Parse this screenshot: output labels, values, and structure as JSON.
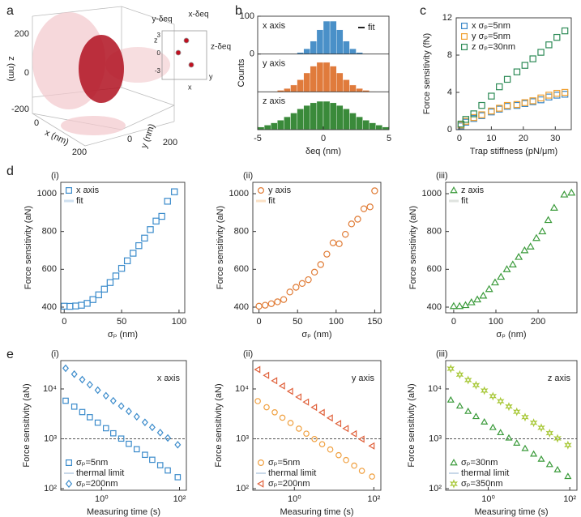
{
  "chart_data": [
    {
      "type": "scatter3d",
      "label": "a",
      "xlabel": "x (nm)",
      "ylabel": "y (nm)",
      "zlabel": "z (nm)",
      "zticks": [
        200,
        0,
        -200
      ],
      "xticks": [
        0,
        200
      ],
      "yticks": [
        0,
        200
      ],
      "inset_labels": [
        "y-δeq",
        "x-δeq",
        "z-δeq"
      ],
      "inset_axes": [
        "z",
        "y",
        "x"
      ],
      "inset_ticks": [
        3,
        0,
        -3
      ]
    },
    {
      "type": "histogram",
      "label": "b",
      "xlabel": "δeq (nm)",
      "ylabel": "Counts",
      "fit_label": "fit",
      "bins": [
        -5,
        -4.5,
        -4,
        -3.5,
        -3,
        -2.5,
        -2,
        -1.5,
        -1,
        -0.5,
        0,
        0.5,
        1,
        1.5,
        2,
        2.5,
        3,
        3.5,
        4,
        4.5,
        5
      ],
      "xlim": [
        -5,
        5
      ],
      "xticks": [
        -5,
        0,
        5
      ],
      "ylim": [
        0,
        100
      ],
      "yticks": [
        0,
        100
      ],
      "series": [
        {
          "name": "x axis",
          "color": "#4a90c8",
          "values": [
            0,
            0,
            0,
            0,
            0,
            1,
            4,
            14,
            34,
            64,
            87,
            87,
            64,
            34,
            14,
            4,
            1,
            0,
            0,
            0
          ]
        },
        {
          "name": "y axis",
          "color": "#e07b3c",
          "values": [
            0,
            0,
            1,
            4,
            9,
            18,
            32,
            50,
            68,
            78,
            78,
            68,
            50,
            32,
            18,
            9,
            4,
            1,
            0,
            0
          ]
        },
        {
          "name": "z axis",
          "color": "#3a8a3a",
          "values": [
            7,
            12,
            18,
            25,
            34,
            44,
            55,
            64,
            71,
            75,
            75,
            71,
            64,
            55,
            44,
            34,
            25,
            18,
            12,
            7
          ]
        }
      ]
    },
    {
      "type": "scatter",
      "label": "c",
      "xlabel": "Trap stiffness (pN/μm)",
      "ylabel": "Force sensitivity (fN)",
      "xlim": [
        -1,
        35
      ],
      "xticks": [
        0,
        10,
        20,
        30
      ],
      "ylim": [
        0,
        12
      ],
      "yticks": [
        0,
        4,
        8,
        12
      ],
      "legend": "upper left",
      "x": [
        0.5,
        2,
        4.5,
        7,
        10,
        12.5,
        15,
        18,
        20.5,
        23,
        25.5,
        28,
        30.5,
        33
      ],
      "series": [
        {
          "name": "x σₚ=5nm",
          "color": "#3a87c8",
          "marker": "square",
          "values": [
            0.4,
            0.8,
            1.2,
            1.5,
            1.9,
            2.2,
            2.5,
            2.6,
            2.8,
            3.0,
            3.2,
            3.5,
            3.7,
            3.8
          ]
        },
        {
          "name": "y σₚ=5nm",
          "color": "#f0a030",
          "marker": "square",
          "values": [
            0.5,
            0.9,
            1.3,
            1.6,
            2.0,
            2.3,
            2.6,
            2.7,
            2.9,
            3.1,
            3.4,
            3.7,
            3.9,
            4.0
          ]
        },
        {
          "name": "z σₚ=30nm",
          "color": "#2e8b57",
          "marker": "square",
          "values": [
            0.6,
            1.1,
            1.7,
            2.6,
            3.6,
            4.6,
            5.4,
            6.2,
            6.9,
            7.6,
            8.3,
            9.1,
            9.9,
            10.6
          ]
        }
      ]
    },
    {
      "type": "scatter",
      "label": "d",
      "sublabel": "(i)",
      "xlabel": "σₚ (nm)",
      "ylabel": "Force sensitivity (aN)",
      "fit_label": "fit",
      "fit_color": "#cfe0f0",
      "xlim": [
        -3,
        105
      ],
      "xticks": [
        0,
        50,
        100
      ],
      "ylim": [
        370,
        1060
      ],
      "yticks": [
        400,
        600,
        800,
        1000
      ],
      "legend": "upper left",
      "x": [
        0,
        5,
        10,
        15,
        20,
        25,
        30,
        35,
        40,
        45,
        50,
        55,
        60,
        65,
        70,
        75,
        80,
        85,
        90,
        96
      ],
      "series": [
        {
          "name": "x axis",
          "color": "#3a8bcb",
          "marker": "square",
          "values": [
            405,
            404,
            406,
            410,
            420,
            440,
            465,
            495,
            530,
            565,
            605,
            645,
            685,
            725,
            765,
            810,
            855,
            880,
            960,
            1010
          ]
        }
      ]
    },
    {
      "type": "scatter",
      "sublabel": "(ii)",
      "xlabel": "σₚ (nm)",
      "ylabel": "Force sensitivity (aN)",
      "fit_label": "fit",
      "fit_color": "#fbe0c4",
      "xlim": [
        -8,
        158
      ],
      "xticks": [
        0,
        50,
        100,
        150
      ],
      "ylim": [
        370,
        1060
      ],
      "yticks": [
        400,
        600,
        800,
        1000
      ],
      "legend": "upper left",
      "x": [
        0,
        8,
        16,
        24,
        32,
        40,
        48,
        56,
        64,
        72,
        80,
        88,
        96,
        104,
        112,
        120,
        128,
        136,
        144,
        150
      ],
      "series": [
        {
          "name": "y axis",
          "color": "#e07b35",
          "marker": "circle",
          "values": [
            405,
            410,
            418,
            428,
            440,
            480,
            505,
            525,
            545,
            585,
            625,
            680,
            740,
            735,
            785,
            840,
            865,
            920,
            930,
            1015
          ]
        }
      ]
    },
    {
      "type": "scatter",
      "sublabel": "(iii)",
      "xlabel": "σₚ (nm)",
      "ylabel": "Force sensitivity (aN)",
      "fit_label": "fit",
      "fit_color": "#dfe3df",
      "xlim": [
        -19,
        292
      ],
      "xticks": [
        0,
        100,
        200
      ],
      "ylim": [
        370,
        1060
      ],
      "yticks": [
        400,
        600,
        800,
        1000
      ],
      "legend": "upper left",
      "x": [
        0,
        14,
        28,
        42,
        56,
        70,
        84,
        98,
        112,
        126,
        140,
        154,
        168,
        182,
        196,
        210,
        224,
        238,
        262,
        279
      ],
      "series": [
        {
          "name": "z axis",
          "color": "#3a9a3a",
          "marker": "triangle-up",
          "values": [
            405,
            405,
            410,
            425,
            440,
            460,
            495,
            530,
            560,
            600,
            625,
            665,
            700,
            720,
            765,
            800,
            860,
            925,
            995,
            1005
          ]
        }
      ]
    },
    {
      "type": "scatter",
      "label": "e",
      "sublabel": "(i)",
      "title": "x axis",
      "xlabel": "Measuring time (s)",
      "ylabel": "Force sensitivity (aN)",
      "log_x": true,
      "log_y": true,
      "xlim": [
        0.09,
        150
      ],
      "ylim": [
        93,
        37000
      ],
      "legend": "lower left",
      "xticks": [
        {
          "value": 1,
          "label": "10⁰"
        },
        {
          "value": 100,
          "label": "10²"
        }
      ],
      "yticks": [
        {
          "value": 100,
          "label": "10²"
        },
        {
          "value": 1000,
          "label": "10³"
        },
        {
          "value": 10000,
          "label": "10⁴"
        }
      ],
      "thermal_limit": 1000,
      "thermal_label": "thermal limit",
      "x": [
        0.12,
        0.2,
        0.32,
        0.5,
        0.8,
        1.3,
        2,
        3.2,
        5,
        8,
        13,
        20,
        32,
        50,
        90
      ],
      "series": [
        {
          "name": "σₚ=5nm",
          "color": "#3b8bcb",
          "marker": "square",
          "values": [
            5800,
            4420,
            3440,
            2710,
            2110,
            1630,
            1290,
            1010,
            794,
            618,
            478,
            380,
            296,
            232,
            170
          ]
        },
        {
          "name": "σₚ=200nm",
          "color": "#3b8bcb",
          "marker": "diamond",
          "values": [
            26000,
            19800,
            15400,
            12150,
            9460,
            7300,
            5780,
            4530,
            3560,
            2770,
            2140,
            1700,
            1330,
            1040,
            760
          ]
        }
      ]
    },
    {
      "type": "scatter",
      "sublabel": "(ii)",
      "title": "y axis",
      "xlabel": "Measuring time (s)",
      "ylabel": "Force sensitivity (aN)",
      "log_x": true,
      "log_y": true,
      "xlim": [
        0.09,
        150
      ],
      "ylim": [
        93,
        37000
      ],
      "legend": "lower left",
      "xticks": [
        {
          "value": 1,
          "label": "10⁰"
        },
        {
          "value": 100,
          "label": "10²"
        }
      ],
      "yticks": [
        {
          "value": 100,
          "label": "10²"
        },
        {
          "value": 1000,
          "label": "10³"
        },
        {
          "value": 10000,
          "label": "10⁴"
        }
      ],
      "thermal_limit": 1000,
      "thermal_label": "thermal limit",
      "x": [
        0.12,
        0.2,
        0.32,
        0.5,
        0.8,
        1.3,
        2,
        3.2,
        5,
        8,
        13,
        20,
        32,
        50,
        90
      ],
      "series": [
        {
          "name": "σₚ=5nm",
          "color": "#f0a040",
          "marker": "circle",
          "values": [
            5700,
            4300,
            3400,
            2650,
            2080,
            1600,
            1270,
            990,
            780,
            610,
            470,
            375,
            290,
            228,
            175
          ]
        },
        {
          "name": "σₚ=200nm",
          "color": "#e0603a",
          "marker": "triangle-left",
          "values": [
            24500,
            18700,
            14600,
            11500,
            8950,
            6900,
            5460,
            4280,
            3370,
            2620,
            2020,
            1610,
            1260,
            985,
            720
          ]
        }
      ]
    },
    {
      "type": "scatter",
      "sublabel": "(iii)",
      "title": "z axis",
      "xlabel": "Measuring time (s)",
      "ylabel": "Force sensitivity (aN)",
      "log_x": true,
      "log_y": true,
      "xlim": [
        0.09,
        150
      ],
      "ylim": [
        93,
        37000
      ],
      "legend": "lower left",
      "xticks": [
        {
          "value": 1,
          "label": "10⁰"
        },
        {
          "value": 100,
          "label": "10²"
        }
      ],
      "yticks": [
        {
          "value": 100,
          "label": "10²"
        },
        {
          "value": 1000,
          "label": "10³"
        },
        {
          "value": 10000,
          "label": "10⁴"
        }
      ],
      "thermal_limit": 1000,
      "thermal_label": "thermal limit",
      "x": [
        0.12,
        0.2,
        0.32,
        0.5,
        0.8,
        1.3,
        2,
        3.2,
        5,
        8,
        13,
        20,
        32,
        50,
        90
      ],
      "series": [
        {
          "name": "σₚ=30nm",
          "color": "#3a9a3a",
          "marker": "triangle-up",
          "values": [
            6000,
            4550,
            3550,
            2800,
            2180,
            1690,
            1330,
            1040,
            820,
            640,
            495,
            392,
            305,
            240,
            176
          ]
        },
        {
          "name": "σₚ=350nm",
          "color": "#a8c838",
          "marker": "star",
          "values": [
            25500,
            19400,
            15100,
            11900,
            9280,
            7160,
            5670,
            4440,
            3490,
            2720,
            2100,
            1670,
            1300,
            1020,
            750
          ]
        }
      ]
    }
  ]
}
